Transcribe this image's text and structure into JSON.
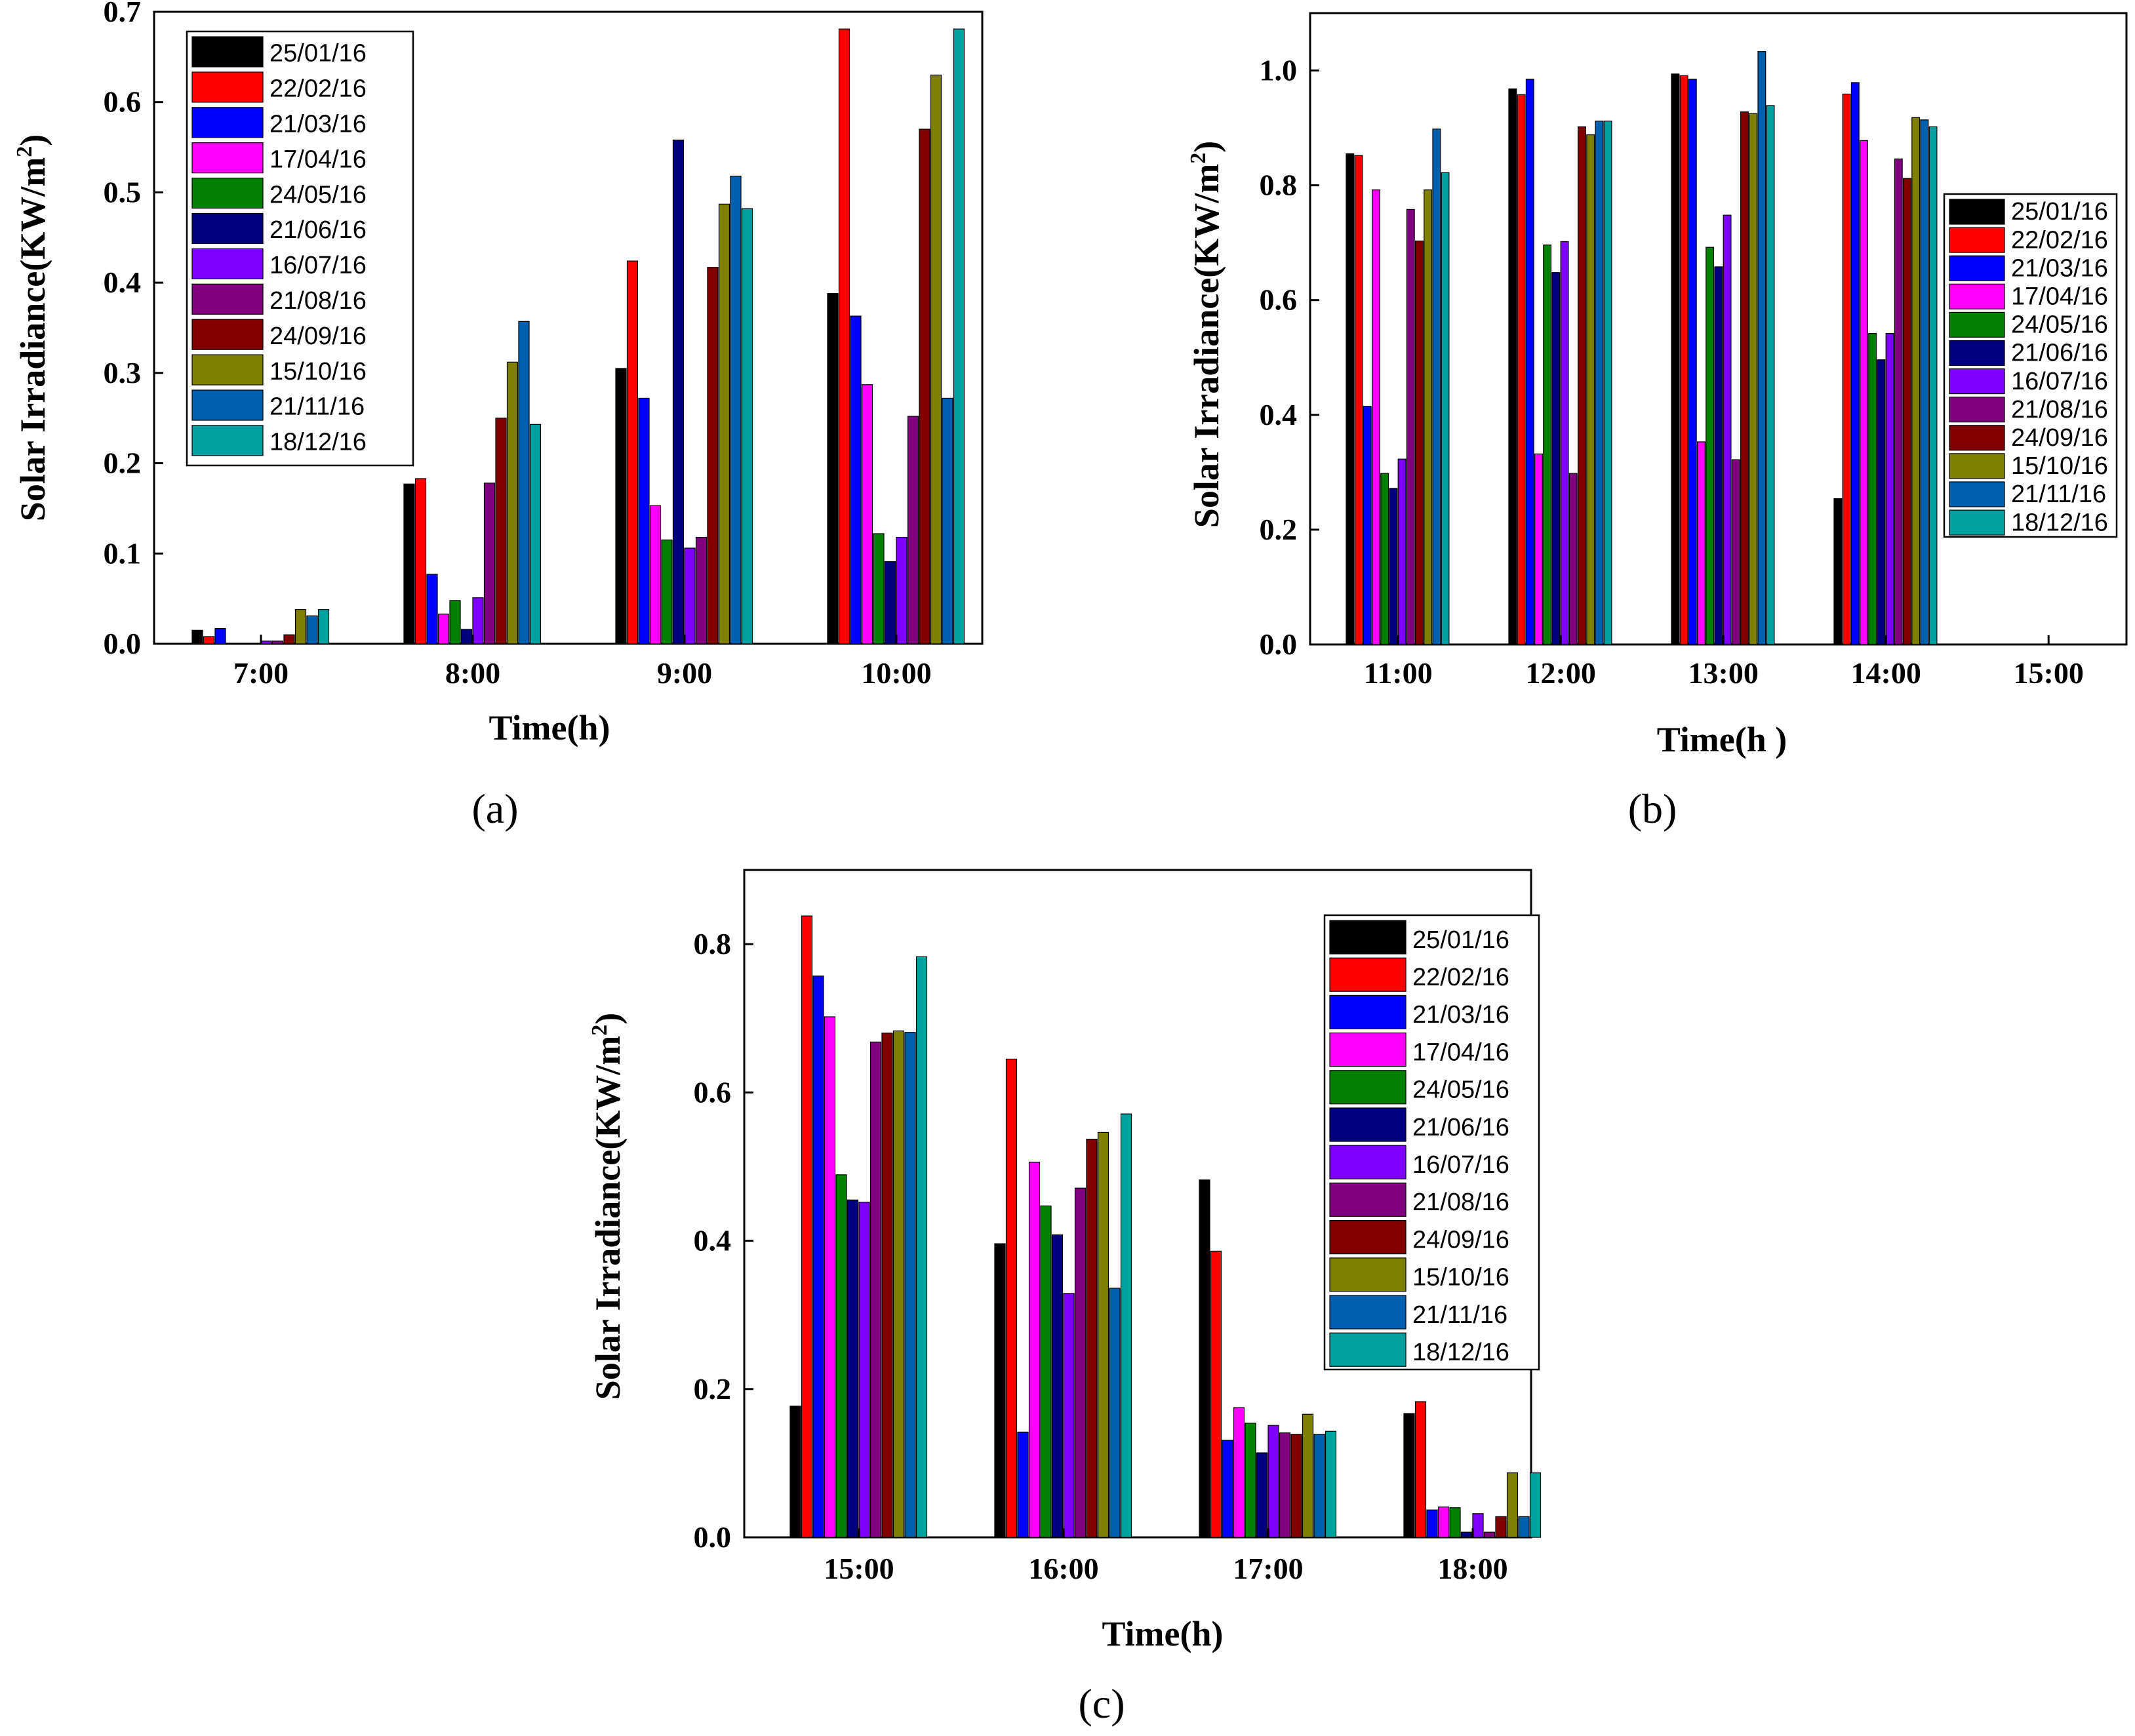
{
  "colors": [
    "#000000",
    "#ff0000",
    "#0000ff",
    "#ff00ff",
    "#008000",
    "#000080",
    "#8000ff",
    "#800080",
    "#800000",
    "#808000",
    "#0060b0",
    "#00a0a0"
  ],
  "chart_data": [
    {
      "type": "bar",
      "panel_label": "(a)",
      "xlabel": "Time(h)",
      "ylabel": "Solar Irradiance(KW/m",
      "ylabel_sup": "2",
      "ylabel_end": ")",
      "ylim": [
        0,
        0.7
      ],
      "yticks": [
        "0.0",
        "0.1",
        "0.2",
        "0.3",
        "0.4",
        "0.5",
        "0.6",
        "0.7"
      ],
      "legend_position": "top-left",
      "categories": [
        "7:00",
        "8:00",
        "9:00",
        "10:00"
      ],
      "series": [
        {
          "name": "25/01/16",
          "values": [
            0.015,
            0.177,
            0.305,
            0.388
          ]
        },
        {
          "name": "22/02/16",
          "values": [
            0.008,
            0.183,
            0.424,
            0.681
          ]
        },
        {
          "name": "21/03/16",
          "values": [
            0.017,
            0.077,
            0.272,
            0.363
          ]
        },
        {
          "name": "17/04/16",
          "values": [
            0.0,
            0.033,
            0.153,
            0.287
          ]
        },
        {
          "name": "24/05/16",
          "values": [
            0.0,
            0.048,
            0.115,
            0.122
          ]
        },
        {
          "name": "21/06/16",
          "values": [
            0.0,
            0.016,
            0.558,
            0.091
          ]
        },
        {
          "name": "16/07/16",
          "values": [
            0.003,
            0.051,
            0.106,
            0.118
          ]
        },
        {
          "name": "21/08/16",
          "values": [
            0.003,
            0.178,
            0.118,
            0.252
          ]
        },
        {
          "name": "24/09/16",
          "values": [
            0.01,
            0.25,
            0.417,
            0.57
          ]
        },
        {
          "name": "15/10/16",
          "values": [
            0.038,
            0.312,
            0.487,
            0.63
          ]
        },
        {
          "name": "21/11/16",
          "values": [
            0.031,
            0.357,
            0.518,
            0.272
          ]
        },
        {
          "name": "18/12/16",
          "values": [
            0.038,
            0.243,
            0.482,
            0.681
          ]
        }
      ]
    },
    {
      "type": "bar",
      "panel_label": "(b)",
      "xlabel": "Time(h )",
      "ylabel": "Solar Irradiance(KW/m",
      "ylabel_sup": "2",
      "ylabel_end": ")",
      "ylim": [
        0,
        1.1
      ],
      "yticks": [
        "0.0",
        "0.2",
        "0.4",
        "0.6",
        "0.8",
        "1.0"
      ],
      "legend_position": "right",
      "categories": [
        "11:00",
        "12:00",
        "13:00",
        "14:00",
        "15:00"
      ],
      "series": [
        {
          "name": "25/01/16",
          "values": [
            0.855,
            0.968,
            0.994,
            0.254,
            0
          ]
        },
        {
          "name": "22/02/16",
          "values": [
            0.852,
            0.958,
            0.991,
            0.959,
            0
          ]
        },
        {
          "name": "21/03/16",
          "values": [
            0.415,
            0.985,
            0.985,
            0.979,
            0
          ]
        },
        {
          "name": "17/04/16",
          "values": [
            0.792,
            0.332,
            0.353,
            0.878,
            0
          ]
        },
        {
          "name": "24/05/16",
          "values": [
            0.298,
            0.696,
            0.692,
            0.542,
            0
          ]
        },
        {
          "name": "21/06/16",
          "values": [
            0.272,
            0.648,
            0.658,
            0.496,
            0
          ]
        },
        {
          "name": "16/07/16",
          "values": [
            0.323,
            0.702,
            0.748,
            0.542,
            0
          ]
        },
        {
          "name": "21/08/16",
          "values": [
            0.758,
            0.298,
            0.322,
            0.846,
            0
          ]
        },
        {
          "name": "24/09/16",
          "values": [
            0.703,
            0.902,
            0.928,
            0.812,
            0
          ]
        },
        {
          "name": "15/10/16",
          "values": [
            0.792,
            0.888,
            0.925,
            0.918,
            0
          ]
        },
        {
          "name": "21/11/16",
          "values": [
            0.898,
            0.912,
            1.033,
            0.914,
            0
          ]
        },
        {
          "name": "18/12/16",
          "values": [
            0.822,
            0.912,
            0.939,
            0.902,
            0
          ]
        }
      ]
    },
    {
      "type": "bar",
      "panel_label": "(c)",
      "xlabel": "Time(h)",
      "ylabel": "Solar Irradiance(KW/m",
      "ylabel_sup": "2",
      "ylabel_end": ")",
      "ylim": [
        0,
        0.9
      ],
      "yticks": [
        "0.0",
        "0.2",
        "0.4",
        "0.6",
        "0.8"
      ],
      "legend_position": "top-right",
      "categories": [
        "15:00",
        "16:00",
        "17:00",
        "18:00"
      ],
      "series": [
        {
          "name": "25/01/16",
          "values": [
            0.177,
            0.396,
            0.482,
            0.167
          ]
        },
        {
          "name": "22/02/16",
          "values": [
            0.838,
            0.645,
            0.386,
            0.183
          ]
        },
        {
          "name": "21/03/16",
          "values": [
            0.757,
            0.142,
            0.131,
            0.037
          ]
        },
        {
          "name": "17/04/16",
          "values": [
            0.702,
            0.506,
            0.175,
            0.041
          ]
        },
        {
          "name": "24/05/16",
          "values": [
            0.489,
            0.447,
            0.154,
            0.04
          ]
        },
        {
          "name": "21/06/16",
          "values": [
            0.455,
            0.408,
            0.114,
            0.007
          ]
        },
        {
          "name": "16/07/16",
          "values": [
            0.452,
            0.329,
            0.151,
            0.032
          ]
        },
        {
          "name": "21/08/16",
          "values": [
            0.668,
            0.471,
            0.141,
            0.007
          ]
        },
        {
          "name": "24/09/16",
          "values": [
            0.68,
            0.537,
            0.139,
            0.028
          ]
        },
        {
          "name": "15/10/16",
          "values": [
            0.683,
            0.546,
            0.166,
            0.087
          ]
        },
        {
          "name": "21/11/16",
          "values": [
            0.681,
            0.336,
            0.139,
            0.028
          ]
        },
        {
          "name": "18/12/16",
          "values": [
            0.783,
            0.571,
            0.143,
            0.087
          ]
        }
      ]
    }
  ]
}
